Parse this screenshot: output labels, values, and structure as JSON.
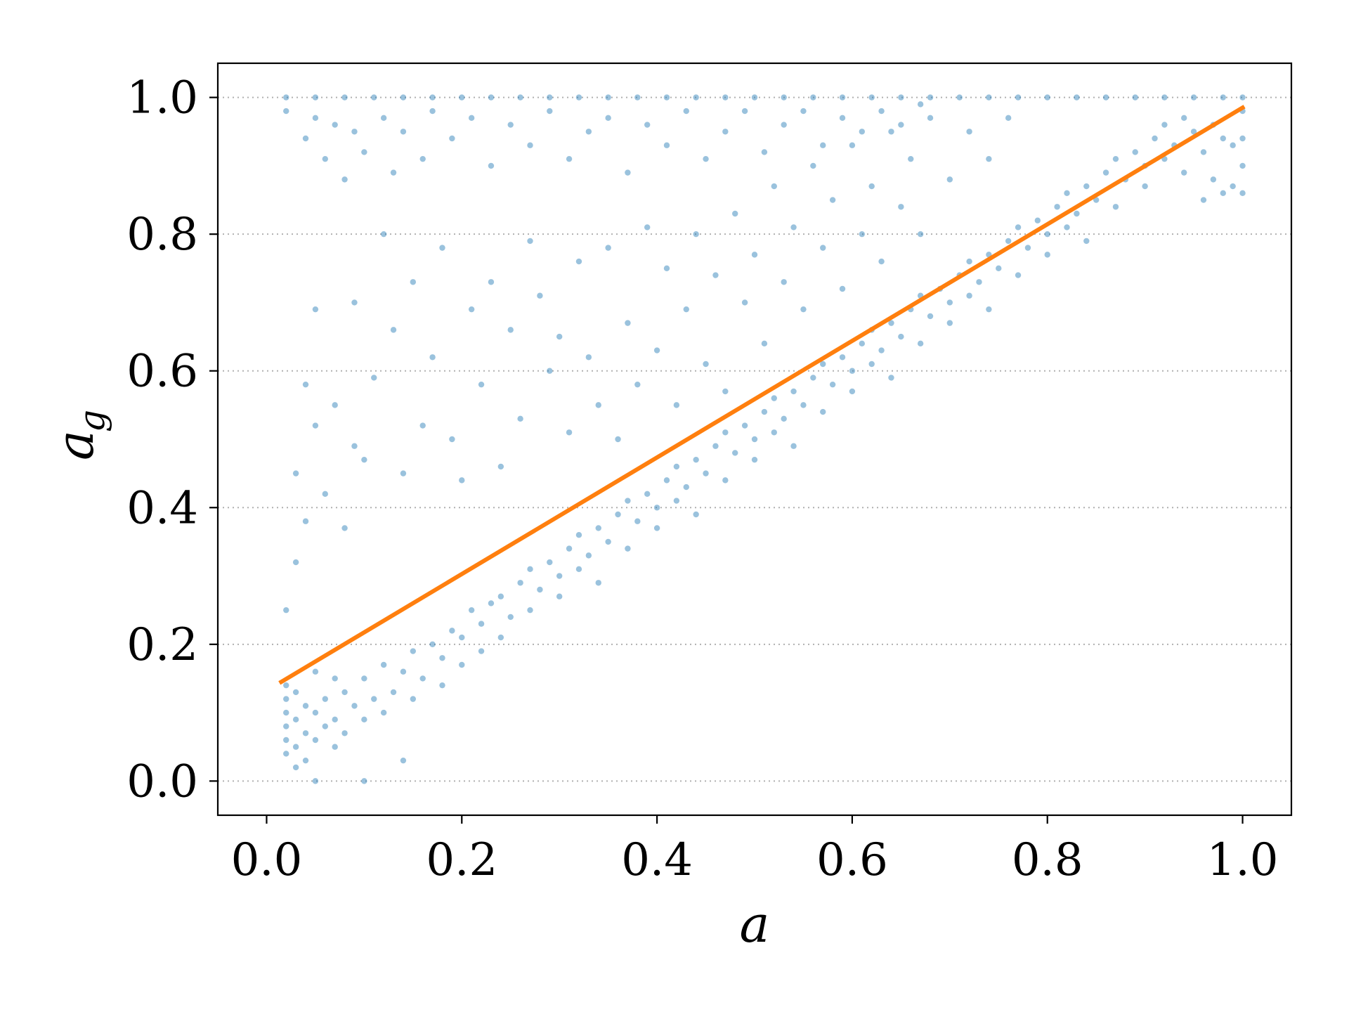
{
  "chart_data": {
    "type": "scatter",
    "title": "",
    "xlabel": "a",
    "ylabel": {
      "main": "a",
      "subscript": "g"
    },
    "xlim": [
      -0.05,
      1.05
    ],
    "ylim": [
      -0.05,
      1.05
    ],
    "xticks": [
      {
        "value": 0.0,
        "label": "0.0"
      },
      {
        "value": 0.2,
        "label": "0.2"
      },
      {
        "value": 0.4,
        "label": "0.4"
      },
      {
        "value": 0.6,
        "label": "0.6"
      },
      {
        "value": 0.8,
        "label": "0.8"
      },
      {
        "value": 1.0,
        "label": "1.0"
      }
    ],
    "yticks": [
      {
        "value": 0.0,
        "label": "0.0"
      },
      {
        "value": 0.2,
        "label": "0.2"
      },
      {
        "value": 0.4,
        "label": "0.4"
      },
      {
        "value": 0.6,
        "label": "0.6"
      },
      {
        "value": 0.8,
        "label": "0.8"
      },
      {
        "value": 1.0,
        "label": "1.0"
      }
    ],
    "grid": {
      "axis": "y",
      "style": "dotted"
    },
    "colors": {
      "scatter": "#1f77b4",
      "line": "#ff7f0e",
      "grid": "#b0b0b0"
    },
    "series": [
      {
        "kind": "scatter",
        "points": [
          [
            0.02,
            0.04
          ],
          [
            0.02,
            0.06
          ],
          [
            0.02,
            0.08
          ],
          [
            0.02,
            0.1
          ],
          [
            0.02,
            0.12
          ],
          [
            0.02,
            0.14
          ],
          [
            0.03,
            0.02
          ],
          [
            0.03,
            0.05
          ],
          [
            0.03,
            0.09
          ],
          [
            0.03,
            0.13
          ],
          [
            0.04,
            0.03
          ],
          [
            0.04,
            0.07
          ],
          [
            0.04,
            0.11
          ],
          [
            0.05,
            0.0
          ],
          [
            0.05,
            0.06
          ],
          [
            0.05,
            0.1
          ],
          [
            0.05,
            0.16
          ],
          [
            0.06,
            0.08
          ],
          [
            0.06,
            0.12
          ],
          [
            0.07,
            0.05
          ],
          [
            0.07,
            0.09
          ],
          [
            0.07,
            0.15
          ],
          [
            0.08,
            0.07
          ],
          [
            0.08,
            0.13
          ],
          [
            0.09,
            0.11
          ],
          [
            0.1,
            0.0
          ],
          [
            0.1,
            0.09
          ],
          [
            0.1,
            0.15
          ],
          [
            0.11,
            0.12
          ],
          [
            0.12,
            0.1
          ],
          [
            0.12,
            0.17
          ],
          [
            0.13,
            0.13
          ],
          [
            0.14,
            0.03
          ],
          [
            0.14,
            0.16
          ],
          [
            0.15,
            0.12
          ],
          [
            0.15,
            0.19
          ],
          [
            0.16,
            0.15
          ],
          [
            0.17,
            0.2
          ],
          [
            0.18,
            0.14
          ],
          [
            0.18,
            0.18
          ],
          [
            0.19,
            0.22
          ],
          [
            0.2,
            0.17
          ],
          [
            0.2,
            0.21
          ],
          [
            0.21,
            0.25
          ],
          [
            0.22,
            0.19
          ],
          [
            0.22,
            0.23
          ],
          [
            0.23,
            0.26
          ],
          [
            0.24,
            0.21
          ],
          [
            0.24,
            0.27
          ],
          [
            0.25,
            0.24
          ],
          [
            0.26,
            0.29
          ],
          [
            0.27,
            0.25
          ],
          [
            0.27,
            0.31
          ],
          [
            0.28,
            0.28
          ],
          [
            0.29,
            0.32
          ],
          [
            0.3,
            0.27
          ],
          [
            0.3,
            0.3
          ],
          [
            0.31,
            0.34
          ],
          [
            0.32,
            0.31
          ],
          [
            0.32,
            0.36
          ],
          [
            0.33,
            0.33
          ],
          [
            0.34,
            0.29
          ],
          [
            0.34,
            0.37
          ],
          [
            0.35,
            0.35
          ],
          [
            0.36,
            0.39
          ],
          [
            0.37,
            0.34
          ],
          [
            0.37,
            0.41
          ],
          [
            0.38,
            0.38
          ],
          [
            0.39,
            0.42
          ],
          [
            0.4,
            0.37
          ],
          [
            0.4,
            0.4
          ],
          [
            0.41,
            0.44
          ],
          [
            0.42,
            0.41
          ],
          [
            0.42,
            0.46
          ],
          [
            0.43,
            0.43
          ],
          [
            0.44,
            0.39
          ],
          [
            0.44,
            0.47
          ],
          [
            0.45,
            0.45
          ],
          [
            0.46,
            0.49
          ],
          [
            0.47,
            0.44
          ],
          [
            0.47,
            0.51
          ],
          [
            0.48,
            0.48
          ],
          [
            0.49,
            0.52
          ],
          [
            0.5,
            0.47
          ],
          [
            0.5,
            0.5
          ],
          [
            0.51,
            0.54
          ],
          [
            0.52,
            0.51
          ],
          [
            0.52,
            0.56
          ],
          [
            0.53,
            0.53
          ],
          [
            0.54,
            0.49
          ],
          [
            0.54,
            0.57
          ],
          [
            0.55,
            0.55
          ],
          [
            0.56,
            0.59
          ],
          [
            0.57,
            0.54
          ],
          [
            0.57,
            0.61
          ],
          [
            0.58,
            0.58
          ],
          [
            0.59,
            0.62
          ],
          [
            0.6,
            0.57
          ],
          [
            0.6,
            0.6
          ],
          [
            0.61,
            0.64
          ],
          [
            0.62,
            0.61
          ],
          [
            0.62,
            0.66
          ],
          [
            0.63,
            0.63
          ],
          [
            0.64,
            0.59
          ],
          [
            0.64,
            0.67
          ],
          [
            0.65,
            0.65
          ],
          [
            0.66,
            0.69
          ],
          [
            0.67,
            0.64
          ],
          [
            0.67,
            0.71
          ],
          [
            0.68,
            0.68
          ],
          [
            0.69,
            0.72
          ],
          [
            0.7,
            0.67
          ],
          [
            0.7,
            0.7
          ],
          [
            0.71,
            0.74
          ],
          [
            0.72,
            0.71
          ],
          [
            0.72,
            0.76
          ],
          [
            0.73,
            0.73
          ],
          [
            0.74,
            0.69
          ],
          [
            0.74,
            0.77
          ],
          [
            0.75,
            0.75
          ],
          [
            0.76,
            0.79
          ],
          [
            0.77,
            0.74
          ],
          [
            0.77,
            0.81
          ],
          [
            0.78,
            0.78
          ],
          [
            0.79,
            0.82
          ],
          [
            0.8,
            0.77
          ],
          [
            0.8,
            0.8
          ],
          [
            0.81,
            0.84
          ],
          [
            0.82,
            0.81
          ],
          [
            0.82,
            0.86
          ],
          [
            0.83,
            0.83
          ],
          [
            0.84,
            0.79
          ],
          [
            0.84,
            0.87
          ],
          [
            0.85,
            0.85
          ],
          [
            0.86,
            0.89
          ],
          [
            0.87,
            0.84
          ],
          [
            0.87,
            0.91
          ],
          [
            0.88,
            0.88
          ],
          [
            0.89,
            0.92
          ],
          [
            0.9,
            0.87
          ],
          [
            0.9,
            0.9
          ],
          [
            0.91,
            0.94
          ],
          [
            0.92,
            0.91
          ],
          [
            0.92,
            0.96
          ],
          [
            0.93,
            0.93
          ],
          [
            0.94,
            0.89
          ],
          [
            0.94,
            0.97
          ],
          [
            0.95,
            0.95
          ],
          [
            0.96,
            0.85
          ],
          [
            0.96,
            0.92
          ],
          [
            0.97,
            0.88
          ],
          [
            0.97,
            0.96
          ],
          [
            0.98,
            0.86
          ],
          [
            0.98,
            0.94
          ],
          [
            0.99,
            0.87
          ],
          [
            0.99,
            0.93
          ],
          [
            1.0,
            0.86
          ],
          [
            1.0,
            0.9
          ],
          [
            1.0,
            0.94
          ],
          [
            1.0,
            0.98
          ],
          [
            0.02,
            0.25
          ],
          [
            0.03,
            0.32
          ],
          [
            0.03,
            0.45
          ],
          [
            0.04,
            0.38
          ],
          [
            0.04,
            0.58
          ],
          [
            0.05,
            0.52
          ],
          [
            0.05,
            0.69
          ],
          [
            0.06,
            0.42
          ],
          [
            0.07,
            0.55
          ],
          [
            0.08,
            0.37
          ],
          [
            0.09,
            0.49
          ],
          [
            0.09,
            0.7
          ],
          [
            0.1,
            0.47
          ],
          [
            0.11,
            0.59
          ],
          [
            0.12,
            0.8
          ],
          [
            0.13,
            0.66
          ],
          [
            0.14,
            0.45
          ],
          [
            0.15,
            0.73
          ],
          [
            0.16,
            0.52
          ],
          [
            0.17,
            0.62
          ],
          [
            0.18,
            0.78
          ],
          [
            0.19,
            0.5
          ],
          [
            0.2,
            0.44
          ],
          [
            0.21,
            0.69
          ],
          [
            0.22,
            0.58
          ],
          [
            0.23,
            0.73
          ],
          [
            0.24,
            0.46
          ],
          [
            0.25,
            0.66
          ],
          [
            0.26,
            0.53
          ],
          [
            0.27,
            0.79
          ],
          [
            0.28,
            0.71
          ],
          [
            0.29,
            0.6
          ],
          [
            0.3,
            0.65
          ],
          [
            0.31,
            0.51
          ],
          [
            0.32,
            0.76
          ],
          [
            0.33,
            0.62
          ],
          [
            0.34,
            0.55
          ],
          [
            0.35,
            0.78
          ],
          [
            0.36,
            0.5
          ],
          [
            0.37,
            0.67
          ],
          [
            0.38,
            0.58
          ],
          [
            0.39,
            0.81
          ],
          [
            0.4,
            0.63
          ],
          [
            0.41,
            0.75
          ],
          [
            0.42,
            0.55
          ],
          [
            0.43,
            0.69
          ],
          [
            0.44,
            0.8
          ],
          [
            0.45,
            0.61
          ],
          [
            0.46,
            0.74
          ],
          [
            0.47,
            0.57
          ],
          [
            0.48,
            0.83
          ],
          [
            0.49,
            0.7
          ],
          [
            0.5,
            0.77
          ],
          [
            0.51,
            0.64
          ],
          [
            0.52,
            0.87
          ],
          [
            0.53,
            0.73
          ],
          [
            0.54,
            0.81
          ],
          [
            0.55,
            0.69
          ],
          [
            0.56,
            0.9
          ],
          [
            0.57,
            0.78
          ],
          [
            0.58,
            0.85
          ],
          [
            0.59,
            0.72
          ],
          [
            0.6,
            0.93
          ],
          [
            0.61,
            0.8
          ],
          [
            0.62,
            0.87
          ],
          [
            0.63,
            0.76
          ],
          [
            0.64,
            0.95
          ],
          [
            0.65,
            0.84
          ],
          [
            0.66,
            0.91
          ],
          [
            0.67,
            0.8
          ],
          [
            0.68,
            0.97
          ],
          [
            0.7,
            0.88
          ],
          [
            0.72,
            0.95
          ],
          [
            0.74,
            0.91
          ],
          [
            0.76,
            0.97
          ],
          [
            0.02,
            0.98
          ],
          [
            0.04,
            0.94
          ],
          [
            0.05,
            0.97
          ],
          [
            0.06,
            0.91
          ],
          [
            0.07,
            0.96
          ],
          [
            0.08,
            0.88
          ],
          [
            0.09,
            0.95
          ],
          [
            0.1,
            0.92
          ],
          [
            0.12,
            0.97
          ],
          [
            0.13,
            0.89
          ],
          [
            0.14,
            0.95
          ],
          [
            0.16,
            0.91
          ],
          [
            0.17,
            0.98
          ],
          [
            0.19,
            0.94
          ],
          [
            0.21,
            0.97
          ],
          [
            0.23,
            0.9
          ],
          [
            0.25,
            0.96
          ],
          [
            0.27,
            0.93
          ],
          [
            0.29,
            0.98
          ],
          [
            0.31,
            0.91
          ],
          [
            0.33,
            0.95
          ],
          [
            0.35,
            0.97
          ],
          [
            0.37,
            0.89
          ],
          [
            0.39,
            0.96
          ],
          [
            0.41,
            0.93
          ],
          [
            0.43,
            0.98
          ],
          [
            0.45,
            0.91
          ],
          [
            0.47,
            0.95
          ],
          [
            0.49,
            0.98
          ],
          [
            0.51,
            0.92
          ],
          [
            0.53,
            0.96
          ],
          [
            0.55,
            0.98
          ],
          [
            0.57,
            0.93
          ],
          [
            0.59,
            0.97
          ],
          [
            0.61,
            0.95
          ],
          [
            0.63,
            0.98
          ],
          [
            0.65,
            0.96
          ],
          [
            0.67,
            0.99
          ],
          [
            0.02,
            1.0
          ],
          [
            0.05,
            1.0
          ],
          [
            0.08,
            1.0
          ],
          [
            0.11,
            1.0
          ],
          [
            0.14,
            1.0
          ],
          [
            0.17,
            1.0
          ],
          [
            0.2,
            1.0
          ],
          [
            0.23,
            1.0
          ],
          [
            0.26,
            1.0
          ],
          [
            0.29,
            1.0
          ],
          [
            0.32,
            1.0
          ],
          [
            0.35,
            1.0
          ],
          [
            0.38,
            1.0
          ],
          [
            0.41,
            1.0
          ],
          [
            0.44,
            1.0
          ],
          [
            0.47,
            1.0
          ],
          [
            0.5,
            1.0
          ],
          [
            0.53,
            1.0
          ],
          [
            0.56,
            1.0
          ],
          [
            0.59,
            1.0
          ],
          [
            0.62,
            1.0
          ],
          [
            0.65,
            1.0
          ],
          [
            0.68,
            1.0
          ],
          [
            0.71,
            1.0
          ],
          [
            0.74,
            1.0
          ],
          [
            0.77,
            1.0
          ],
          [
            0.8,
            1.0
          ],
          [
            0.83,
            1.0
          ],
          [
            0.86,
            1.0
          ],
          [
            0.89,
            1.0
          ],
          [
            0.92,
            1.0
          ],
          [
            0.95,
            1.0
          ],
          [
            0.98,
            1.0
          ],
          [
            1.0,
            1.0
          ]
        ]
      },
      {
        "kind": "line",
        "x": [
          0.015,
          1.0
        ],
        "y": [
          0.145,
          0.985
        ]
      }
    ]
  }
}
